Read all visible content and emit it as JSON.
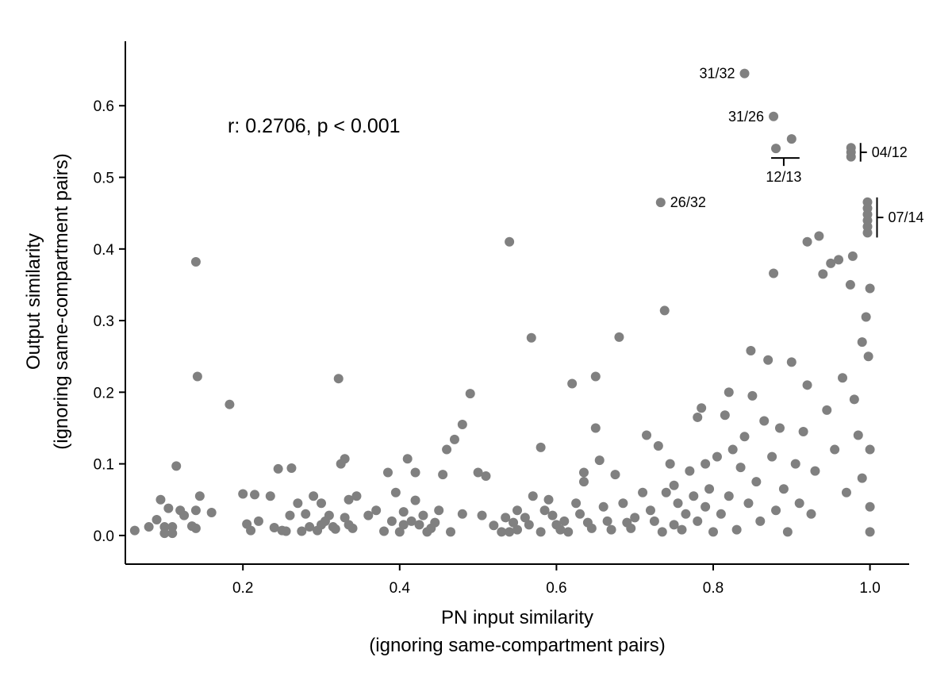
{
  "chart_data": {
    "type": "scatter",
    "xlabel": [
      "PN input similarity",
      "(ignoring same-compartment pairs)"
    ],
    "ylabel": [
      "Output similarity",
      "(ignoring same-compartment pairs)"
    ],
    "xlim": [
      0.05,
      1.05
    ],
    "ylim": [
      -0.04,
      0.69
    ],
    "x_ticks": [
      {
        "value": 0.2,
        "label": "0.2"
      },
      {
        "value": 0.4,
        "label": "0.4"
      },
      {
        "value": 0.6,
        "label": "0.6"
      },
      {
        "value": 0.8,
        "label": "0.8"
      },
      {
        "value": 1.0,
        "label": "1.0"
      }
    ],
    "y_ticks": [
      {
        "value": 0.0,
        "label": "0.0"
      },
      {
        "value": 0.1,
        "label": "0.1"
      },
      {
        "value": 0.2,
        "label": "0.2"
      },
      {
        "value": 0.3,
        "label": "0.3"
      },
      {
        "value": 0.4,
        "label": "0.4"
      },
      {
        "value": 0.5,
        "label": "0.5"
      },
      {
        "value": 0.6,
        "label": "0.6"
      }
    ],
    "stat_text": "r: 0.2706, p < 0.001",
    "point_color": "#808080",
    "annotations": [
      {
        "label": "31/32",
        "x": 0.84,
        "y": 0.645,
        "style": "point-left"
      },
      {
        "label": "31/26",
        "x": 0.877,
        "y": 0.585,
        "style": "point-left"
      },
      {
        "label": "26/32",
        "x": 0.733,
        "y": 0.465,
        "style": "point-right"
      },
      {
        "label": "12/13",
        "style": "bracket-below",
        "x_range": [
          0.88,
          0.9
        ],
        "y": 0.527
      },
      {
        "label": "04/12",
        "style": "bracket-right",
        "x": 0.988,
        "y_range": [
          0.522,
          0.548
        ]
      },
      {
        "label": "07/14",
        "style": "bracket-right",
        "x": 1.009,
        "y_range": [
          0.416,
          0.472
        ]
      }
    ],
    "series": [
      {
        "points": [
          [
            0.062,
            0.007
          ],
          [
            0.08,
            0.012
          ],
          [
            0.09,
            0.022
          ],
          [
            0.095,
            0.05
          ],
          [
            0.1,
            0.012
          ],
          [
            0.1,
            0.003
          ],
          [
            0.105,
            0.038
          ],
          [
            0.11,
            0.012
          ],
          [
            0.11,
            0.003
          ],
          [
            0.115,
            0.097
          ],
          [
            0.12,
            0.035
          ],
          [
            0.125,
            0.028
          ],
          [
            0.135,
            0.013
          ],
          [
            0.14,
            0.01
          ],
          [
            0.14,
            0.035
          ],
          [
            0.14,
            0.382
          ],
          [
            0.142,
            0.222
          ],
          [
            0.145,
            0.055
          ],
          [
            0.16,
            0.032
          ],
          [
            0.183,
            0.183
          ],
          [
            0.2,
            0.058
          ],
          [
            0.205,
            0.016
          ],
          [
            0.21,
            0.007
          ],
          [
            0.215,
            0.057
          ],
          [
            0.22,
            0.02
          ],
          [
            0.235,
            0.055
          ],
          [
            0.24,
            0.011
          ],
          [
            0.245,
            0.093
          ],
          [
            0.25,
            0.007
          ],
          [
            0.255,
            0.006
          ],
          [
            0.26,
            0.028
          ],
          [
            0.262,
            0.094
          ],
          [
            0.27,
            0.045
          ],
          [
            0.275,
            0.006
          ],
          [
            0.28,
            0.03
          ],
          [
            0.285,
            0.012
          ],
          [
            0.29,
            0.055
          ],
          [
            0.295,
            0.007
          ],
          [
            0.3,
            0.015
          ],
          [
            0.3,
            0.045
          ],
          [
            0.305,
            0.02
          ],
          [
            0.31,
            0.028
          ],
          [
            0.315,
            0.012
          ],
          [
            0.318,
            0.009
          ],
          [
            0.322,
            0.219
          ],
          [
            0.325,
            0.1
          ],
          [
            0.33,
            0.025
          ],
          [
            0.33,
            0.107
          ],
          [
            0.335,
            0.015
          ],
          [
            0.335,
            0.05
          ],
          [
            0.34,
            0.01
          ],
          [
            0.345,
            0.055
          ],
          [
            0.36,
            0.028
          ],
          [
            0.37,
            0.035
          ],
          [
            0.38,
            0.006
          ],
          [
            0.385,
            0.088
          ],
          [
            0.39,
            0.02
          ],
          [
            0.395,
            0.06
          ],
          [
            0.4,
            0.005
          ],
          [
            0.405,
            0.015
          ],
          [
            0.405,
            0.033
          ],
          [
            0.41,
            0.107
          ],
          [
            0.415,
            0.02
          ],
          [
            0.42,
            0.049
          ],
          [
            0.42,
            0.088
          ],
          [
            0.425,
            0.015
          ],
          [
            0.43,
            0.028
          ],
          [
            0.435,
            0.005
          ],
          [
            0.44,
            0.01
          ],
          [
            0.445,
            0.018
          ],
          [
            0.45,
            0.035
          ],
          [
            0.455,
            0.085
          ],
          [
            0.46,
            0.12
          ],
          [
            0.465,
            0.005
          ],
          [
            0.47,
            0.134
          ],
          [
            0.48,
            0.155
          ],
          [
            0.48,
            0.03
          ],
          [
            0.49,
            0.198
          ],
          [
            0.5,
            0.088
          ],
          [
            0.505,
            0.028
          ],
          [
            0.51,
            0.083
          ],
          [
            0.52,
            0.014
          ],
          [
            0.53,
            0.005
          ],
          [
            0.535,
            0.025
          ],
          [
            0.54,
            0.005
          ],
          [
            0.54,
            0.41
          ],
          [
            0.545,
            0.018
          ],
          [
            0.55,
            0.035
          ],
          [
            0.55,
            0.008
          ],
          [
            0.56,
            0.025
          ],
          [
            0.565,
            0.015
          ],
          [
            0.568,
            0.276
          ],
          [
            0.57,
            0.055
          ],
          [
            0.58,
            0.005
          ],
          [
            0.58,
            0.123
          ],
          [
            0.585,
            0.035
          ],
          [
            0.59,
            0.05
          ],
          [
            0.595,
            0.028
          ],
          [
            0.6,
            0.015
          ],
          [
            0.605,
            0.008
          ],
          [
            0.61,
            0.02
          ],
          [
            0.615,
            0.005
          ],
          [
            0.62,
            0.212
          ],
          [
            0.625,
            0.045
          ],
          [
            0.63,
            0.03
          ],
          [
            0.635,
            0.088
          ],
          [
            0.635,
            0.075
          ],
          [
            0.64,
            0.018
          ],
          [
            0.645,
            0.01
          ],
          [
            0.65,
            0.222
          ],
          [
            0.65,
            0.15
          ],
          [
            0.655,
            0.105
          ],
          [
            0.66,
            0.04
          ],
          [
            0.665,
            0.02
          ],
          [
            0.67,
            0.008
          ],
          [
            0.675,
            0.085
          ],
          [
            0.68,
            0.277
          ],
          [
            0.685,
            0.045
          ],
          [
            0.69,
            0.018
          ],
          [
            0.695,
            0.01
          ],
          [
            0.7,
            0.025
          ],
          [
            0.71,
            0.06
          ],
          [
            0.715,
            0.14
          ],
          [
            0.72,
            0.035
          ],
          [
            0.725,
            0.02
          ],
          [
            0.73,
            0.125
          ],
          [
            0.735,
            0.005
          ],
          [
            0.738,
            0.314
          ],
          [
            0.74,
            0.06
          ],
          [
            0.745,
            0.1
          ],
          [
            0.75,
            0.07
          ],
          [
            0.75,
            0.015
          ],
          [
            0.755,
            0.045
          ],
          [
            0.76,
            0.008
          ],
          [
            0.765,
            0.03
          ],
          [
            0.77,
            0.09
          ],
          [
            0.775,
            0.055
          ],
          [
            0.78,
            0.165
          ],
          [
            0.78,
            0.02
          ],
          [
            0.785,
            0.178
          ],
          [
            0.79,
            0.1
          ],
          [
            0.79,
            0.04
          ],
          [
            0.795,
            0.065
          ],
          [
            0.8,
            0.005
          ],
          [
            0.805,
            0.11
          ],
          [
            0.81,
            0.03
          ],
          [
            0.815,
            0.168
          ],
          [
            0.82,
            0.2
          ],
          [
            0.82,
            0.055
          ],
          [
            0.825,
            0.12
          ],
          [
            0.83,
            0.008
          ],
          [
            0.835,
            0.095
          ],
          [
            0.84,
            0.138
          ],
          [
            0.845,
            0.045
          ],
          [
            0.848,
            0.258
          ],
          [
            0.85,
            0.195
          ],
          [
            0.855,
            0.075
          ],
          [
            0.86,
            0.02
          ],
          [
            0.865,
            0.16
          ],
          [
            0.87,
            0.245
          ],
          [
            0.875,
            0.11
          ],
          [
            0.877,
            0.366
          ],
          [
            0.88,
            0.035
          ],
          [
            0.885,
            0.15
          ],
          [
            0.89,
            0.065
          ],
          [
            0.895,
            0.005
          ],
          [
            0.9,
            0.242
          ],
          [
            0.905,
            0.1
          ],
          [
            0.91,
            0.045
          ],
          [
            0.915,
            0.145
          ],
          [
            0.92,
            0.21
          ],
          [
            0.92,
            0.41
          ],
          [
            0.925,
            0.03
          ],
          [
            0.93,
            0.09
          ],
          [
            0.935,
            0.418
          ],
          [
            0.94,
            0.365
          ],
          [
            0.945,
            0.175
          ],
          [
            0.95,
            0.38
          ],
          [
            0.955,
            0.12
          ],
          [
            0.96,
            0.385
          ],
          [
            0.965,
            0.22
          ],
          [
            0.97,
            0.06
          ],
          [
            0.975,
            0.35
          ],
          [
            0.978,
            0.39
          ],
          [
            0.98,
            0.19
          ],
          [
            0.985,
            0.14
          ],
          [
            0.99,
            0.27
          ],
          [
            0.99,
            0.08
          ],
          [
            0.995,
            0.305
          ],
          [
            0.998,
            0.25
          ],
          [
            1.0,
            0.345
          ],
          [
            1.0,
            0.12
          ],
          [
            1.0,
            0.04
          ],
          [
            1.0,
            0.005
          ]
        ]
      }
    ]
  }
}
